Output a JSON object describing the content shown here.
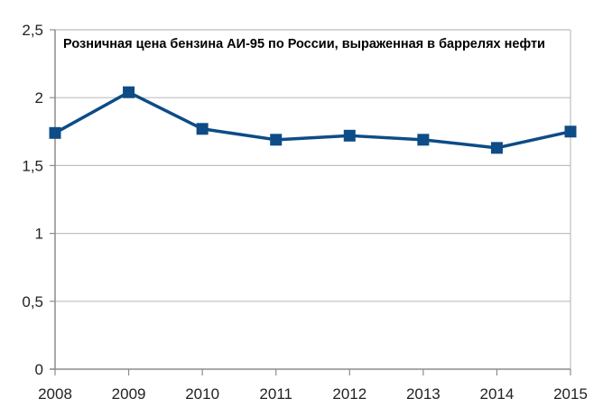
{
  "chart_data": {
    "type": "line",
    "title": "Розничная цена бензина АИ-95 по России, выраженная в баррелях нефти",
    "xlabel": "",
    "ylabel": "",
    "categories": [
      "2008",
      "2009",
      "2010",
      "2011",
      "2012",
      "2013",
      "2014",
      "2015"
    ],
    "series": [
      {
        "values": [
          1.74,
          2.04,
          1.77,
          1.69,
          1.72,
          1.69,
          1.63,
          1.75
        ]
      }
    ],
    "ylim": [
      0,
      2.5
    ],
    "yticks": [
      "0",
      "0,5",
      "1",
      "1,5",
      "2",
      "2,5"
    ],
    "ytick_values": [
      0,
      0.5,
      1,
      1.5,
      2,
      2.5
    ],
    "grid": true,
    "colors": {
      "line": "#0d4c86",
      "grid": "#bfbfbf",
      "axis": "#8c8c8c"
    }
  }
}
